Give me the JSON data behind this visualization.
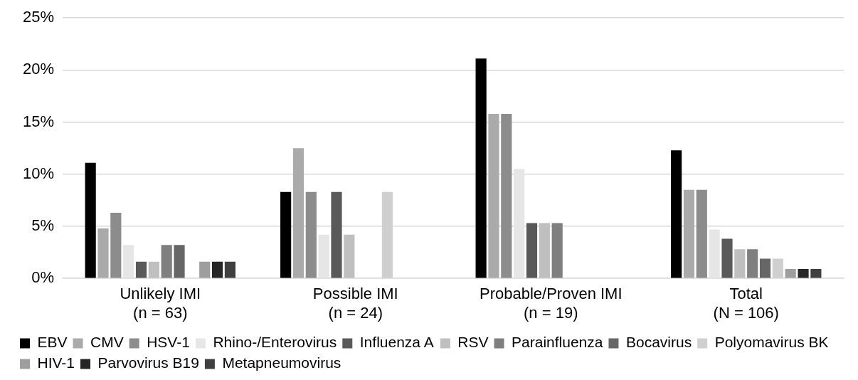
{
  "chart_data": {
    "type": "bar",
    "categories": [
      "Unlikely IMI\n(n = 63)",
      "Possible IMI\n(n = 24)",
      "Probable/Proven IMI\n(n = 19)",
      "Total\n(N = 106)"
    ],
    "series": [
      {
        "name": "EBV",
        "color": "#000000",
        "values": [
          11.1,
          8.3,
          21.1,
          12.3
        ]
      },
      {
        "name": "CMV",
        "color": "#aaaaaa",
        "values": [
          4.8,
          12.5,
          15.8,
          8.5
        ]
      },
      {
        "name": "HSV-1",
        "color": "#8c8c8c",
        "values": [
          6.3,
          8.3,
          15.8,
          8.5
        ]
      },
      {
        "name": "Rhino-/Enterovirus",
        "color": "#e6e6e6",
        "values": [
          3.2,
          4.2,
          10.5,
          4.7
        ]
      },
      {
        "name": "Influenza A",
        "color": "#595959",
        "values": [
          1.6,
          8.3,
          5.3,
          3.8
        ]
      },
      {
        "name": "RSV",
        "color": "#bfbfbf",
        "values": [
          1.6,
          4.2,
          5.3,
          2.8
        ]
      },
      {
        "name": "Parainfluenza",
        "color": "#7f7f7f",
        "values": [
          3.2,
          0,
          5.3,
          2.8
        ]
      },
      {
        "name": "Bocavirus",
        "color": "#666666",
        "values": [
          3.2,
          0,
          0,
          1.9
        ]
      },
      {
        "name": "Polyomavirus BK",
        "color": "#cfcfcf",
        "values": [
          0,
          8.3,
          0,
          1.9
        ]
      },
      {
        "name": "HIV-1",
        "color": "#9e9e9e",
        "values": [
          1.6,
          0,
          0,
          0.9
        ]
      },
      {
        "name": "Parvovirus B19",
        "color": "#262626",
        "values": [
          1.6,
          0,
          0,
          0.9
        ]
      },
      {
        "name": "Metapneumovirus",
        "color": "#404040",
        "values": [
          1.6,
          0,
          0,
          0.9
        ]
      }
    ],
    "ylim": [
      0,
      25
    ],
    "yticks": [
      {
        "value": 0,
        "label": "0%"
      },
      {
        "value": 5,
        "label": "5%"
      },
      {
        "value": 10,
        "label": "10%"
      },
      {
        "value": 15,
        "label": "15%"
      },
      {
        "value": 20,
        "label": "20%"
      },
      {
        "value": 25,
        "label": "25%"
      }
    ],
    "grid": "y",
    "legend": "bottom"
  }
}
